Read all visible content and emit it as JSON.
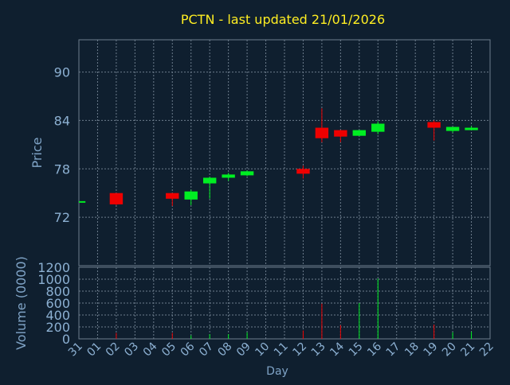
{
  "chart_data": [
    {
      "type": "candlestick",
      "title": "PCTN - last updated 21/01/2026",
      "ylabel": "Price",
      "xlabel": "Day",
      "ylim": [
        66,
        94
      ],
      "yticks": [
        72,
        78,
        84,
        90
      ],
      "grid": true,
      "x_ticks": [
        "31",
        "01",
        "02",
        "03",
        "04",
        "05",
        "06",
        "07",
        "08",
        "09",
        "10",
        "11",
        "12",
        "13",
        "14",
        "15",
        "16",
        "17",
        "18",
        "19",
        "20",
        "21",
        "22"
      ],
      "candles": [
        {
          "day": "31",
          "open": 74.0,
          "high": 74.0,
          "low": 74.0,
          "close": 74.0
        },
        {
          "day": "02",
          "open": 75.0,
          "high": 75.0,
          "low": 73.5,
          "close": 73.6
        },
        {
          "day": "05",
          "open": 75.0,
          "high": 75.0,
          "low": 73.4,
          "close": 74.3
        },
        {
          "day": "06",
          "open": 74.2,
          "high": 75.4,
          "low": 73.5,
          "close": 75.2
        },
        {
          "day": "07",
          "open": 76.2,
          "high": 77.0,
          "low": 74.3,
          "close": 76.9
        },
        {
          "day": "08",
          "open": 76.9,
          "high": 77.5,
          "low": 76.5,
          "close": 77.3
        },
        {
          "day": "09",
          "open": 77.2,
          "high": 77.8,
          "low": 77.1,
          "close": 77.7
        },
        {
          "day": "12",
          "open": 78.0,
          "high": 78.4,
          "low": 76.8,
          "close": 77.4
        },
        {
          "day": "13",
          "open": 83.1,
          "high": 85.5,
          "low": 81.3,
          "close": 81.8
        },
        {
          "day": "14",
          "open": 82.8,
          "high": 82.8,
          "low": 81.3,
          "close": 82.0
        },
        {
          "day": "15",
          "open": 82.1,
          "high": 82.8,
          "low": 82.1,
          "close": 82.8
        },
        {
          "day": "16",
          "open": 82.6,
          "high": 83.9,
          "low": 82.3,
          "close": 83.6
        },
        {
          "day": "19",
          "open": 83.8,
          "high": 84.0,
          "low": 81.5,
          "close": 83.1
        },
        {
          "day": "20",
          "open": 82.7,
          "high": 83.2,
          "low": 82.5,
          "close": 83.2
        },
        {
          "day": "21",
          "open": 82.8,
          "high": 83.3,
          "low": 82.8,
          "close": 83.1
        }
      ]
    },
    {
      "type": "bar",
      "ylabel": "Volume (0000)",
      "xlabel": "Day",
      "ylim": [
        0,
        1200
      ],
      "yticks": [
        0,
        200,
        400,
        600,
        800,
        1000,
        1200
      ],
      "grid": true,
      "values": [
        {
          "day": "31",
          "volume": 0
        },
        {
          "day": "02",
          "volume": 100
        },
        {
          "day": "05",
          "volume": 100
        },
        {
          "day": "06",
          "volume": 60
        },
        {
          "day": "07",
          "volume": 80
        },
        {
          "day": "08",
          "volume": 80
        },
        {
          "day": "09",
          "volume": 110
        },
        {
          "day": "12",
          "volume": 140
        },
        {
          "day": "13",
          "volume": 590
        },
        {
          "day": "14",
          "volume": 230
        },
        {
          "day": "15",
          "volume": 600
        },
        {
          "day": "16",
          "volume": 1010
        },
        {
          "day": "19",
          "volume": 240
        },
        {
          "day": "20",
          "volume": 110
        },
        {
          "day": "21",
          "volume": 120
        }
      ]
    }
  ],
  "colors": {
    "background": "#0f1f2f",
    "up": "#00ee22",
    "down": "#ee0000",
    "title": "#ffee22",
    "axis_label": "#7fa3c6",
    "tick_label": "#8cb0d2",
    "grid": "#6c7c8c",
    "frame": "#6c7c8c"
  }
}
